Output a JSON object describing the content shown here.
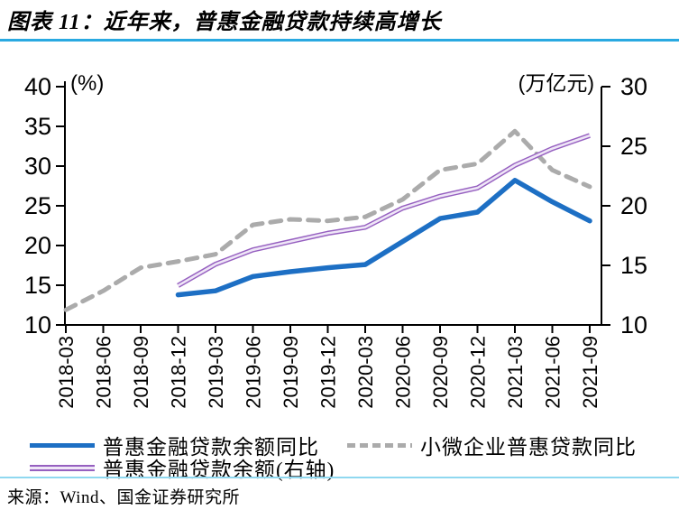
{
  "header": {
    "title": "图表 11：近年来，普惠金融贷款持续高增长"
  },
  "colors": {
    "title_rule": "#29A9E1",
    "footer_rule": "#8FD8F0",
    "axis": "#000000",
    "blue_line": "#1D6FC4",
    "purple_line": "#9660C0",
    "purple_inner": "#EFE6F7",
    "gray_line": "#ABABAB"
  },
  "chart_data": {
    "type": "line",
    "categories": [
      "2018-03",
      "2018-06",
      "2018-09",
      "2018-12",
      "2019-03",
      "2019-06",
      "2019-09",
      "2019-12",
      "2020-03",
      "2020-06",
      "2020-09",
      "2020-12",
      "2021-03",
      "2021-06",
      "2021-09"
    ],
    "left_axis": {
      "unit": "(%)",
      "min": 10,
      "max": 40,
      "ticks": [
        40,
        35,
        30,
        25,
        20,
        15,
        10
      ]
    },
    "right_axis": {
      "unit": "(万亿元)",
      "min": 10,
      "max": 30,
      "ticks": [
        30,
        25,
        20,
        15,
        10
      ]
    },
    "grid": false,
    "legend_position": "bottom",
    "series": [
      {
        "name": "普惠金融贷款余额同比",
        "axis": "left",
        "style": "solid",
        "color": "#1D6FC4",
        "start_index": 3,
        "values": [
          13.8,
          14.3,
          16.1,
          16.7,
          17.2,
          17.6,
          20.5,
          23.4,
          24.2,
          28.2,
          25.5,
          23.1
        ]
      },
      {
        "name": "小微企业普惠贷款同比",
        "axis": "left",
        "style": "dashed",
        "color": "#ABABAB",
        "start_index": 0,
        "values": [
          11.9,
          14.3,
          17.2,
          18.0,
          18.9,
          22.6,
          23.3,
          23.1,
          23.6,
          25.8,
          29.5,
          30.3,
          34.4,
          29.5,
          27.4
        ]
      },
      {
        "name": "普惠金融贷款余额(右轴)",
        "axis": "right",
        "style": "double",
        "color": "#9660C0",
        "inner_color": "#EFE6F7",
        "start_index": 3,
        "values": [
          13.3,
          15.1,
          16.3,
          17.0,
          17.7,
          18.2,
          19.8,
          20.8,
          21.5,
          23.4,
          24.8,
          25.9
        ]
      }
    ]
  },
  "footer": {
    "source": "来源：Wind、国金证券研究所"
  }
}
